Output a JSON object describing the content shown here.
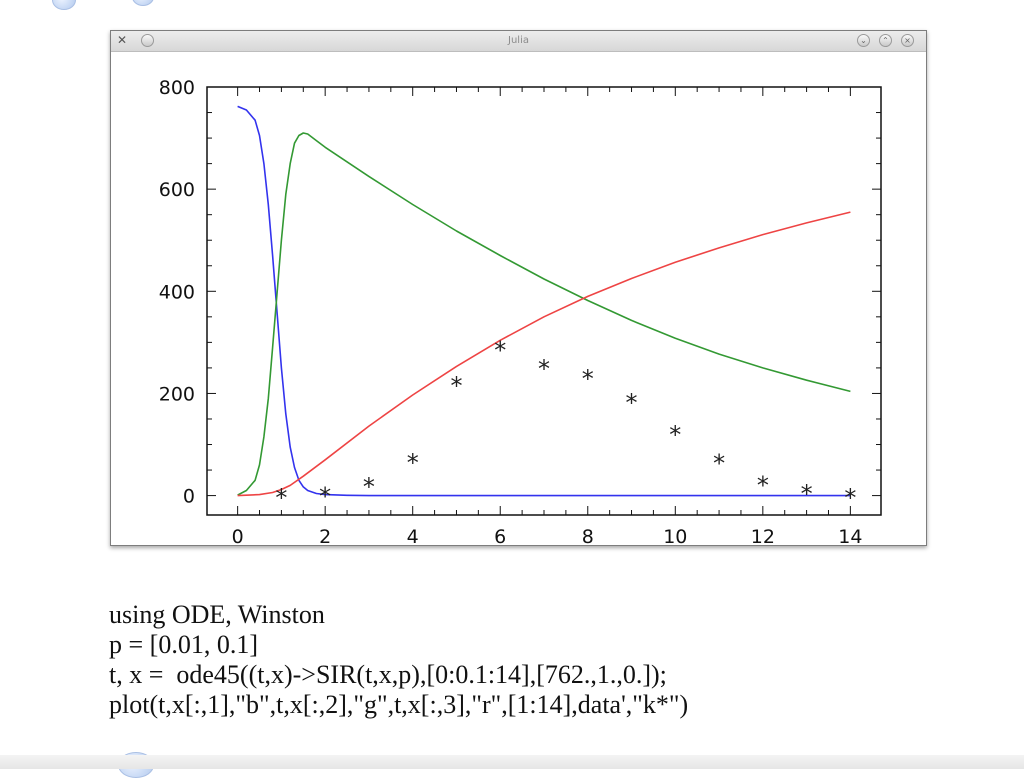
{
  "window": {
    "title": "Julia"
  },
  "colors": {
    "susceptible": "#3333ee",
    "infected": "#339933",
    "recovered": "#ee4444",
    "data_markers": "#222222"
  },
  "code": {
    "lines": [
      "using ODE, Winston",
      "p = [0.01, 0.1]",
      "t, x =  ode45((t,x)->SIR(t,x,p),[0:0.1:14],[762.,1.,0.]);",
      "plot(t,x[:,1],\"b\",t,x[:,2],\"g\",t,x[:,3],\"r\",[1:14],data',\"k*\")"
    ]
  },
  "chart_data": {
    "type": "line",
    "title": "",
    "xlabel": "",
    "ylabel": "",
    "xlim": [
      -0.7,
      14.7
    ],
    "ylim": [
      -38,
      800
    ],
    "xticks": [
      0,
      2,
      4,
      6,
      8,
      10,
      12,
      14
    ],
    "yticks": [
      0,
      200,
      400,
      600,
      800
    ],
    "grid": false,
    "series": [
      {
        "color": "#3333ee",
        "x": [
          0,
          0.2,
          0.4,
          0.5,
          0.6,
          0.7,
          0.8,
          0.9,
          1.0,
          1.1,
          1.2,
          1.3,
          1.4,
          1.5,
          1.6,
          1.8,
          2.0,
          2.5,
          3,
          14
        ],
        "y": [
          762,
          755,
          735,
          705,
          650,
          570,
          470,
          360,
          250,
          160,
          95,
          55,
          30,
          17,
          10,
          4,
          2,
          0.5,
          0,
          0
        ]
      },
      {
        "color": "#339933",
        "x": [
          0,
          0.2,
          0.4,
          0.5,
          0.6,
          0.7,
          0.8,
          0.9,
          1.0,
          1.1,
          1.2,
          1.3,
          1.4,
          1.5,
          1.6,
          1.8,
          2.0,
          3,
          4,
          5,
          6,
          7,
          8,
          9,
          10,
          11,
          12,
          13,
          14
        ],
        "y": [
          1,
          10,
          30,
          60,
          115,
          190,
          290,
          395,
          500,
          590,
          650,
          690,
          705,
          710,
          708,
          695,
          682,
          625,
          570,
          518,
          470,
          424,
          382,
          343,
          308,
          277,
          250,
          226,
          204
        ]
      },
      {
        "color": "#ee4444",
        "x": [
          0,
          0.5,
          0.8,
          1.0,
          1.2,
          1.5,
          2,
          3,
          4,
          5,
          6,
          7,
          8,
          9,
          10,
          11,
          12,
          13,
          14
        ],
        "y": [
          0,
          2,
          6,
          12,
          20,
          38,
          70,
          136,
          197,
          253,
          304,
          350,
          390,
          425,
          457,
          485,
          511,
          534,
          555
        ]
      },
      {
        "color": "#222222",
        "marker": "*",
        "x": [
          1,
          2,
          3,
          4,
          5,
          6,
          7,
          8,
          9,
          10,
          11,
          12,
          13,
          14
        ],
        "y": [
          3,
          6,
          25,
          72,
          222,
          292,
          256,
          236,
          189,
          126,
          71,
          28,
          11,
          3
        ]
      }
    ]
  }
}
